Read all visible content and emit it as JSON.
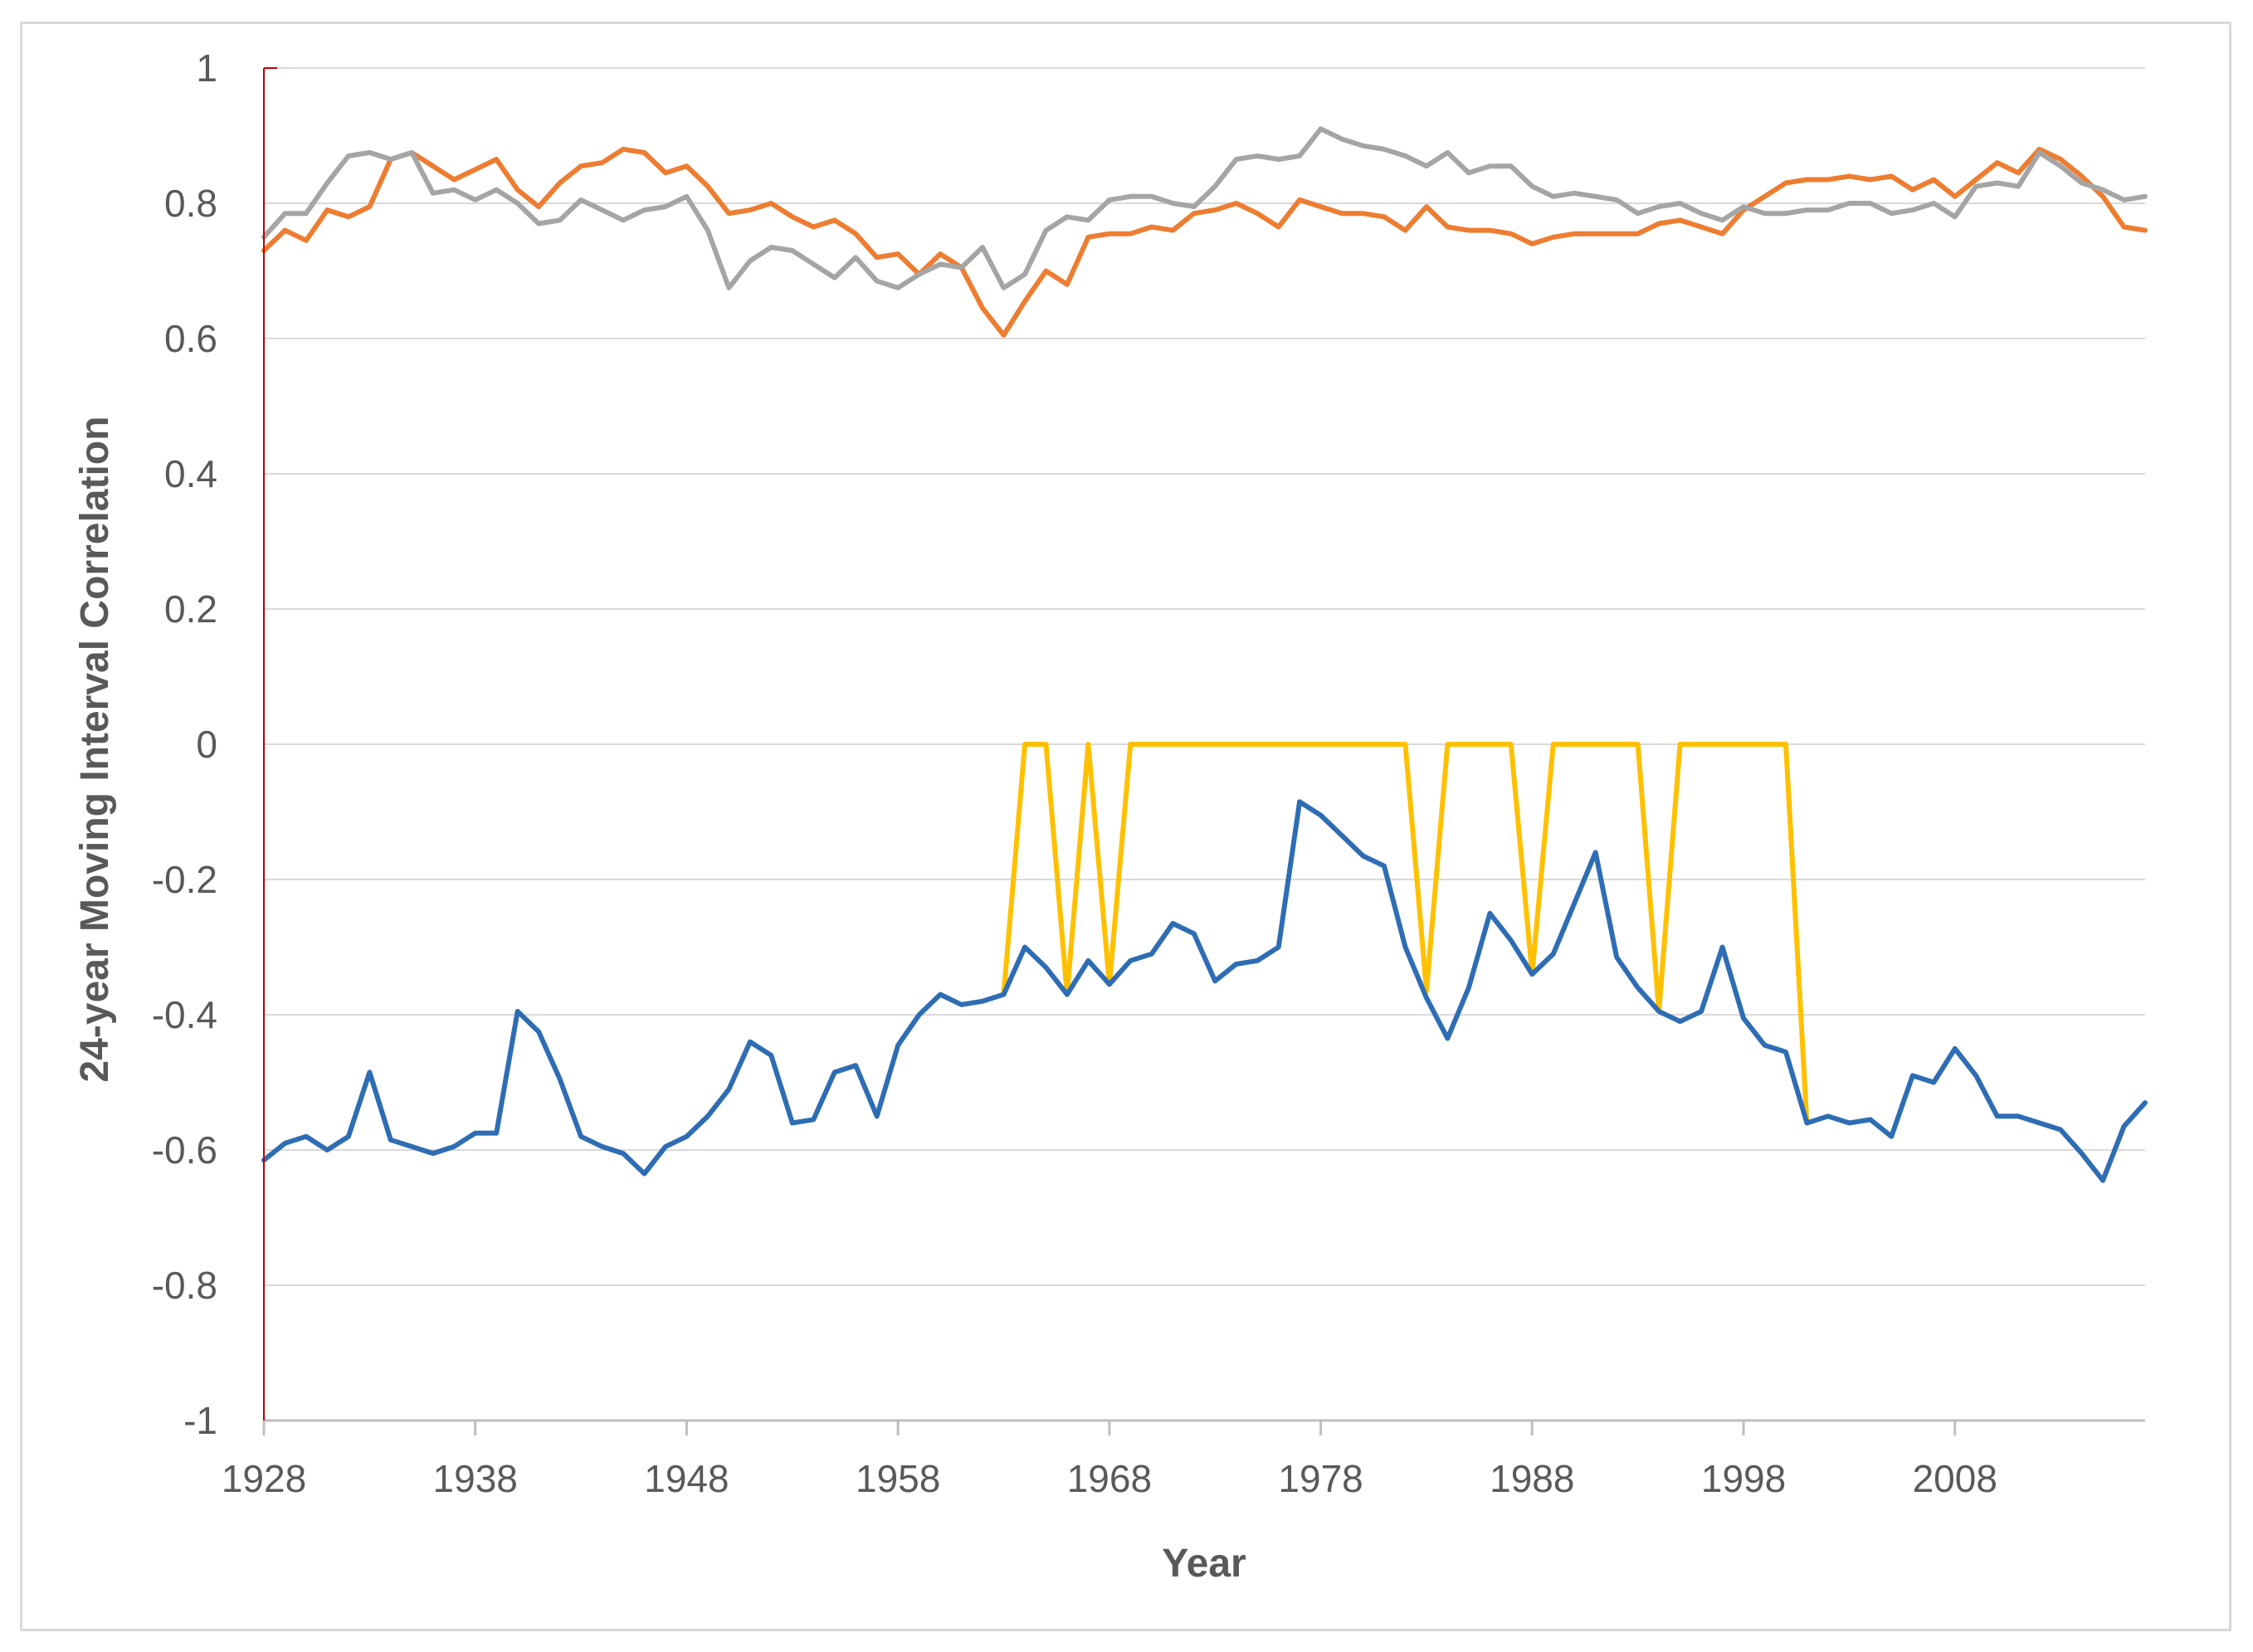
{
  "chart_data": {
    "type": "line",
    "title": "",
    "xlabel": "Year",
    "ylabel": "24-year Moving Interval Correlation",
    "xlim": [
      1928,
      2017
    ],
    "ylim": [
      -1,
      1
    ],
    "x_ticks": [
      1928,
      1938,
      1948,
      1958,
      1968,
      1978,
      1988,
      1998,
      2008
    ],
    "y_ticks": [
      1,
      0.8,
      0.6,
      0.4,
      0.2,
      0,
      -0.2,
      -0.4,
      -0.6,
      -0.8,
      -1
    ],
    "y_tick_labels": [
      "1",
      "0.8",
      "0.6",
      "0.4",
      "0.2",
      "0",
      "-0.2",
      "-0.4",
      "-0.6",
      "-0.8",
      "-1"
    ],
    "grid": true,
    "legend": "none",
    "colors": {
      "orange": "#ed7d31",
      "gray": "#a5a5a5",
      "blue": "#2e6db4",
      "yellow": "#ffc000",
      "left_axis": "#c00000"
    },
    "series": [
      {
        "name": "orange",
        "color": "#ed7d31",
        "x": [
          1928,
          1929,
          1930,
          1931,
          1932,
          1933,
          1934,
          1935,
          1936,
          1937,
          1938,
          1939,
          1940,
          1941,
          1942,
          1943,
          1944,
          1945,
          1946,
          1947,
          1948,
          1949,
          1950,
          1951,
          1952,
          1953,
          1954,
          1955,
          1956,
          1957,
          1958,
          1959,
          1960,
          1961,
          1962,
          1963,
          1964,
          1965,
          1966,
          1967,
          1968,
          1969,
          1970,
          1971,
          1972,
          1973,
          1974,
          1975,
          1976,
          1977,
          1978,
          1979,
          1980,
          1981,
          1982,
          1983,
          1984,
          1985,
          1986,
          1987,
          1988,
          1989,
          1990,
          1991,
          1992,
          1993,
          1994,
          1995,
          1996,
          1997,
          1998,
          1999,
          2000,
          2001,
          2002,
          2003,
          2004,
          2005,
          2006,
          2007,
          2008,
          2009,
          2010,
          2011,
          2012,
          2013,
          2014,
          2015,
          2016,
          2017
        ],
        "values": [
          0.73,
          0.76,
          0.745,
          0.79,
          0.78,
          0.795,
          0.865,
          0.875,
          0.855,
          0.835,
          0.85,
          0.865,
          0.82,
          0.795,
          0.83,
          0.855,
          0.86,
          0.88,
          0.875,
          0.845,
          0.855,
          0.825,
          0.785,
          0.79,
          0.8,
          0.78,
          0.765,
          0.775,
          0.755,
          0.72,
          0.725,
          0.695,
          0.725,
          0.705,
          0.645,
          0.605,
          0.655,
          0.7,
          0.68,
          0.75,
          0.755,
          0.755,
          0.765,
          0.76,
          0.785,
          0.79,
          0.8,
          0.785,
          0.765,
          0.805,
          0.795,
          0.785,
          0.785,
          0.78,
          0.76,
          0.795,
          0.765,
          0.76,
          0.76,
          0.755,
          0.74,
          0.75,
          0.755,
          0.755,
          0.755,
          0.755,
          0.77,
          0.775,
          0.765,
          0.755,
          0.79,
          0.81,
          0.83,
          0.835,
          0.835,
          0.84,
          0.835,
          0.84,
          0.82,
          0.835,
          0.81,
          0.835,
          0.86,
          0.845,
          0.88,
          0.865,
          0.84,
          0.81,
          0.765,
          0.76
        ]
      },
      {
        "name": "gray",
        "color": "#a5a5a5",
        "x": [
          1928,
          1929,
          1930,
          1931,
          1932,
          1933,
          1934,
          1935,
          1936,
          1937,
          1938,
          1939,
          1940,
          1941,
          1942,
          1943,
          1944,
          1945,
          1946,
          1947,
          1948,
          1949,
          1950,
          1951,
          1952,
          1953,
          1954,
          1955,
          1956,
          1957,
          1958,
          1959,
          1960,
          1961,
          1962,
          1963,
          1964,
          1965,
          1966,
          1967,
          1968,
          1969,
          1970,
          1971,
          1972,
          1973,
          1974,
          1975,
          1976,
          1977,
          1978,
          1979,
          1980,
          1981,
          1982,
          1983,
          1984,
          1985,
          1986,
          1987,
          1988,
          1989,
          1990,
          1991,
          1992,
          1993,
          1994,
          1995,
          1996,
          1997,
          1998,
          1999,
          2000,
          2001,
          2002,
          2003,
          2004,
          2005,
          2006,
          2007,
          2008,
          2009,
          2010,
          2011,
          2012,
          2013,
          2014,
          2015,
          2016,
          2017
        ],
        "values": [
          0.75,
          0.785,
          0.785,
          0.83,
          0.87,
          0.875,
          0.865,
          0.875,
          0.815,
          0.82,
          0.805,
          0.82,
          0.8,
          0.77,
          0.775,
          0.805,
          0.79,
          0.775,
          0.79,
          0.795,
          0.81,
          0.76,
          0.675,
          0.715,
          0.735,
          0.73,
          0.71,
          0.69,
          0.72,
          0.685,
          0.675,
          0.695,
          0.71,
          0.705,
          0.735,
          0.675,
          0.695,
          0.76,
          0.78,
          0.775,
          0.805,
          0.81,
          0.81,
          0.8,
          0.795,
          0.825,
          0.865,
          0.87,
          0.865,
          0.87,
          0.91,
          0.895,
          0.885,
          0.88,
          0.87,
          0.855,
          0.875,
          0.845,
          0.855,
          0.855,
          0.825,
          0.81,
          0.815,
          0.81,
          0.805,
          0.785,
          0.795,
          0.8,
          0.785,
          0.775,
          0.795,
          0.785,
          0.785,
          0.79,
          0.79,
          0.8,
          0.8,
          0.785,
          0.79,
          0.8,
          0.78,
          0.825,
          0.83,
          0.825,
          0.875,
          0.855,
          0.83,
          0.82,
          0.805,
          0.81
        ]
      },
      {
        "name": "yellow",
        "color": "#ffc000",
        "x": [
          1963,
          1964,
          1965,
          1966,
          1967,
          1968,
          1969,
          1970,
          1971,
          1972,
          1973,
          1974,
          1975,
          1976,
          1977,
          1978,
          1979,
          1980,
          1981,
          1982,
          1983,
          1984,
          1985,
          1986,
          1987,
          1988,
          1989,
          1990,
          1991,
          1992,
          1993,
          1994,
          1995,
          1996,
          1997,
          1998,
          1999,
          2000,
          2001
        ],
        "values": [
          -0.37,
          0,
          0,
          -0.37,
          0,
          -0.355,
          0,
          0,
          0,
          0,
          0,
          0,
          0,
          0,
          0,
          0,
          0,
          0,
          0,
          0,
          -0.365,
          0,
          0,
          0,
          0,
          -0.34,
          0,
          0,
          0,
          0,
          0,
          -0.395,
          0,
          0,
          0,
          0,
          0,
          0,
          -0.56
        ]
      },
      {
        "name": "blue",
        "color": "#2e6db4",
        "x": [
          1928,
          1929,
          1930,
          1931,
          1932,
          1933,
          1934,
          1935,
          1936,
          1937,
          1938,
          1939,
          1940,
          1941,
          1942,
          1943,
          1944,
          1945,
          1946,
          1947,
          1948,
          1949,
          1950,
          1951,
          1952,
          1953,
          1954,
          1955,
          1956,
          1957,
          1958,
          1959,
          1960,
          1961,
          1962,
          1963,
          1964,
          1965,
          1966,
          1967,
          1968,
          1969,
          1970,
          1971,
          1972,
          1973,
          1974,
          1975,
          1976,
          1977,
          1978,
          1979,
          1980,
          1981,
          1982,
          1983,
          1984,
          1985,
          1986,
          1987,
          1988,
          1989,
          1990,
          1991,
          1992,
          1993,
          1994,
          1995,
          1996,
          1997,
          1998,
          1999,
          2000,
          2001,
          2002,
          2003,
          2004,
          2005,
          2006,
          2007,
          2008,
          2009,
          2010,
          2011,
          2012,
          2013,
          2014,
          2015,
          2016,
          2017
        ],
        "values": [
          -0.615,
          -0.59,
          -0.58,
          -0.6,
          -0.58,
          -0.485,
          -0.585,
          -0.595,
          -0.605,
          -0.595,
          -0.575,
          -0.575,
          -0.395,
          -0.425,
          -0.495,
          -0.58,
          -0.595,
          -0.605,
          -0.635,
          -0.595,
          -0.58,
          -0.55,
          -0.51,
          -0.44,
          -0.46,
          -0.56,
          -0.555,
          -0.485,
          -0.475,
          -0.55,
          -0.445,
          -0.4,
          -0.37,
          -0.385,
          -0.38,
          -0.37,
          -0.3,
          -0.33,
          -0.37,
          -0.32,
          -0.355,
          -0.32,
          -0.31,
          -0.265,
          -0.28,
          -0.35,
          -0.325,
          -0.32,
          -0.3,
          -0.085,
          -0.105,
          -0.135,
          -0.165,
          -0.18,
          -0.3,
          -0.375,
          -0.435,
          -0.36,
          -0.25,
          -0.29,
          -0.34,
          -0.31,
          -0.235,
          -0.16,
          -0.315,
          -0.36,
          -0.395,
          -0.41,
          -0.395,
          -0.3,
          -0.405,
          -0.445,
          -0.455,
          -0.56,
          -0.55,
          -0.56,
          -0.555,
          -0.58,
          -0.49,
          -0.5,
          -0.45,
          -0.49,
          -0.55,
          -0.55,
          -0.56,
          -0.57,
          -0.605,
          -0.645,
          -0.565,
          -0.53
        ]
      }
    ]
  }
}
